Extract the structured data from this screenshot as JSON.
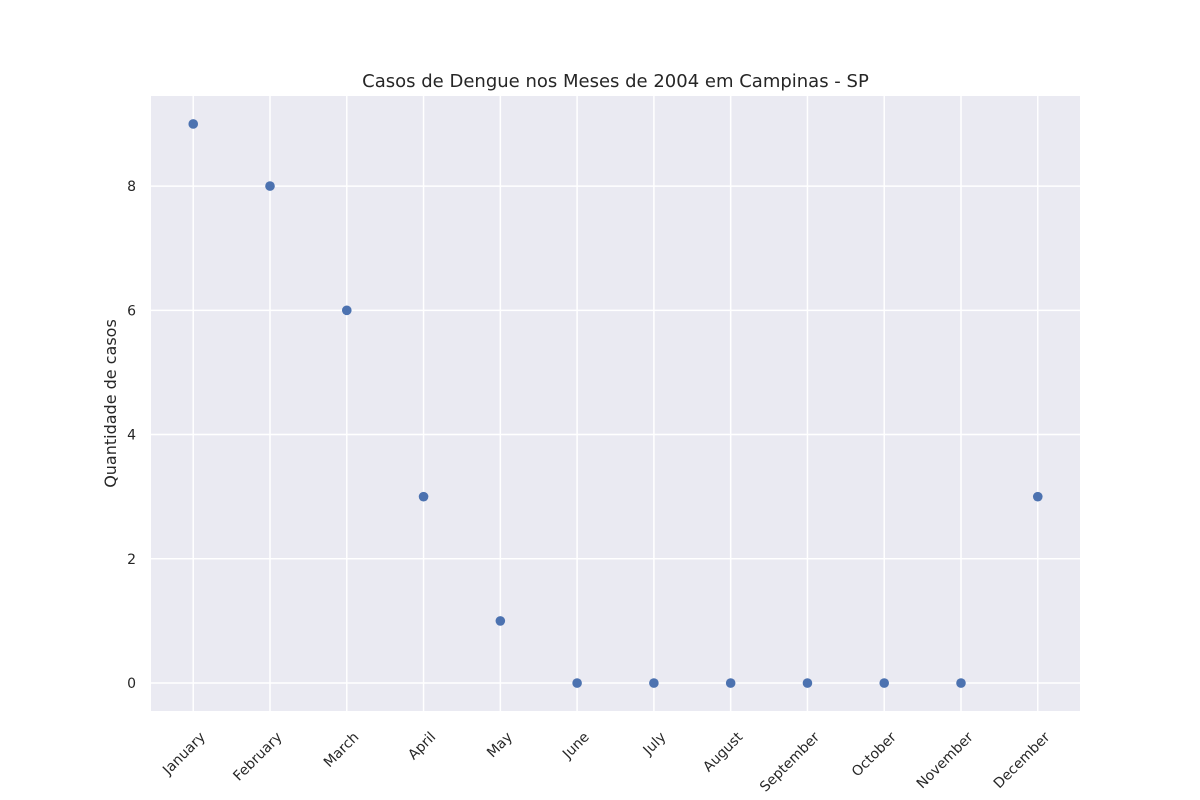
{
  "chart_data": {
    "type": "scatter",
    "title": "Casos de Dengue nos Meses de 2004 em Campinas - SP",
    "xlabel": "",
    "ylabel": "Quantidade de casos",
    "categories": [
      "January",
      "February",
      "March",
      "April",
      "May",
      "June",
      "July",
      "August",
      "September",
      "October",
      "November",
      "December"
    ],
    "values": [
      9,
      8,
      6,
      3,
      1,
      0,
      0,
      0,
      0,
      0,
      0,
      3
    ],
    "ylim": [
      -0.45,
      9.45
    ],
    "yticks": [
      0,
      2,
      4,
      6,
      8
    ],
    "grid": true,
    "colors": {
      "background": "#eaeaf2",
      "grid": "#ffffff",
      "marker": "#4c72b0",
      "text": "#262626"
    }
  }
}
